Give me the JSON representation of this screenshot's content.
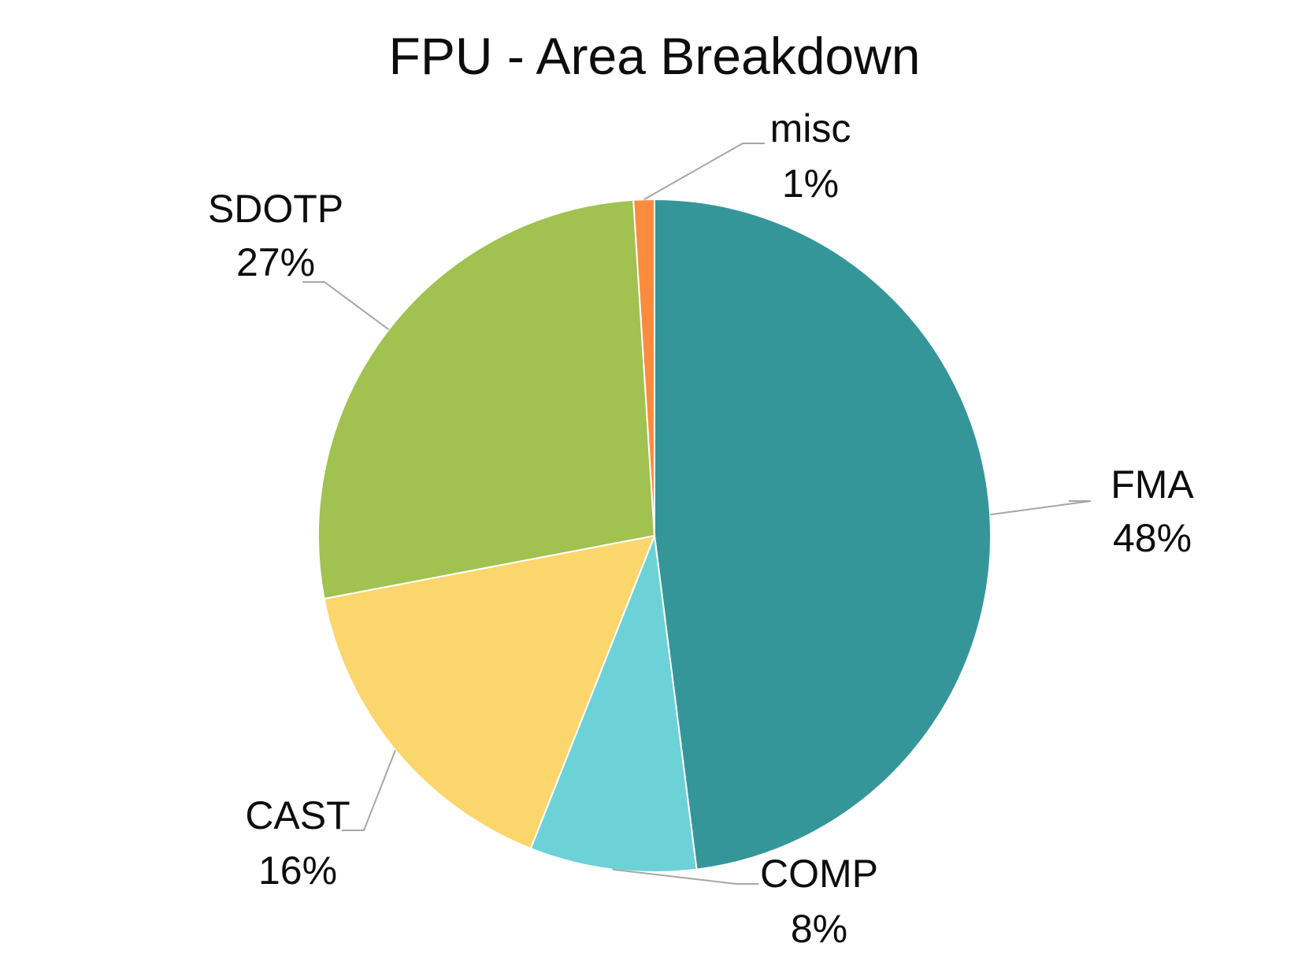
{
  "chart_data": {
    "type": "pie",
    "title": "FPU - Area Breakdown",
    "value_unit": "%",
    "start_category": "FMA",
    "direction": "clockwise",
    "data_labels": "outside-with-leader-lines",
    "legend": "none",
    "slices": [
      {
        "label": "FMA",
        "value": 48,
        "display": "48%",
        "color": "#35969a"
      },
      {
        "label": "COMP",
        "value": 8,
        "display": "8%",
        "color": "#6dd1d8"
      },
      {
        "label": "CAST",
        "value": 16,
        "display": "16%",
        "color": "#fad66c"
      },
      {
        "label": "SDOTP",
        "value": 27,
        "display": "27%",
        "color": "#a1c151"
      },
      {
        "label": "misc",
        "value": 1,
        "display": "1%",
        "color": "#fb8c3e"
      }
    ],
    "leader_line_color": "#a6a6a6"
  }
}
